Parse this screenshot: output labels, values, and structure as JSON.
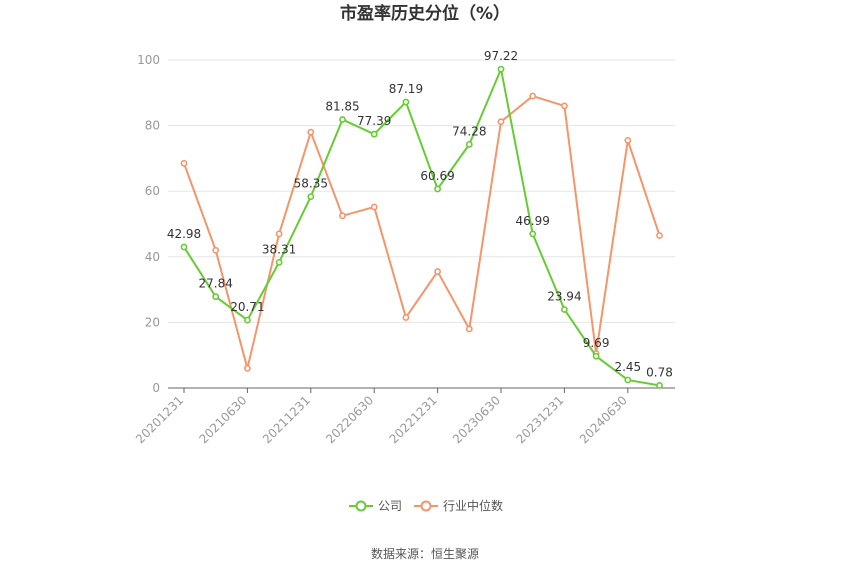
{
  "chart_data": {
    "type": "line",
    "title": "市盈率历史分位（%）",
    "xlabel": "",
    "ylabel": "",
    "ylim": [
      0,
      100
    ],
    "yticks": [
      0,
      20,
      40,
      60,
      80,
      100
    ],
    "grid": true,
    "legend_position": "bottom",
    "x_tick_labels": [
      "20201231",
      "20210630",
      "20211231",
      "20220630",
      "20221231",
      "20230630",
      "20231231",
      "20240630"
    ],
    "x_tick_indices": [
      0,
      2,
      4,
      6,
      8,
      10,
      12,
      14
    ],
    "series": [
      {
        "name": "公司",
        "color": "#66cc33",
        "values": [
          42.98,
          27.84,
          20.71,
          38.31,
          58.35,
          81.85,
          77.39,
          87.19,
          60.69,
          74.28,
          97.22,
          46.99,
          23.94,
          9.69,
          2.45,
          0.78
        ],
        "labels": [
          "42.98",
          "27.84",
          "20.71",
          "38.31",
          "58.35",
          "81.85",
          "77.39",
          "87.19",
          "60.69",
          "74.28",
          "97.22",
          "46.99",
          "23.94",
          "9.69",
          "2.45",
          "0.78"
        ]
      },
      {
        "name": "行业中位数",
        "color": "#f4956b",
        "values": [
          68.5,
          42.0,
          6.0,
          47.0,
          78.0,
          52.5,
          55.2,
          21.5,
          35.5,
          18.0,
          81.2,
          89.0,
          86.0,
          10.5,
          75.5,
          46.5
        ]
      }
    ],
    "source": "数据来源：恒生聚源"
  }
}
